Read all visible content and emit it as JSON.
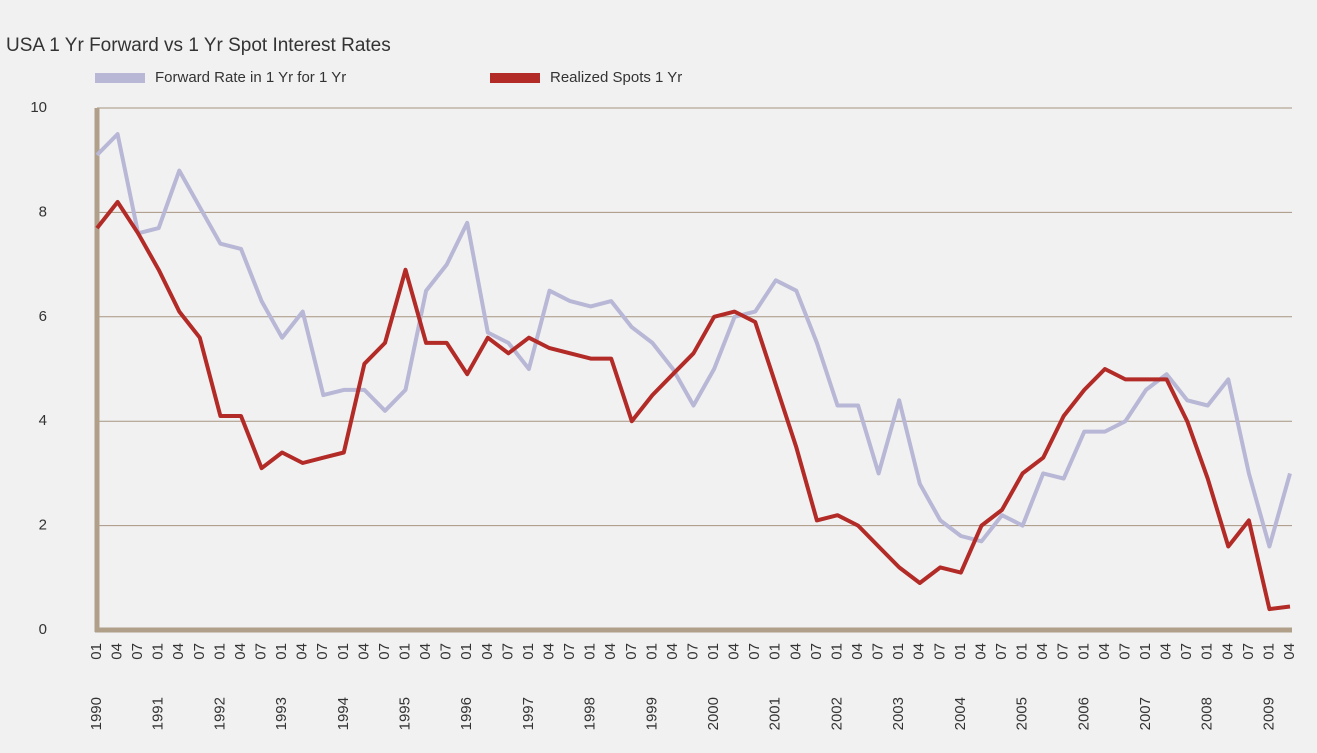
{
  "chart_data": {
    "type": "line",
    "title": "USA 1 Yr Forward vs 1 Yr Spot Interest Rates",
    "categories": [
      "01",
      "04",
      "07",
      "01",
      "04",
      "07",
      "01",
      "04",
      "07",
      "01",
      "04",
      "07",
      "01",
      "04",
      "07",
      "01",
      "04",
      "07",
      "01",
      "04",
      "07",
      "01",
      "04",
      "07",
      "01",
      "04",
      "07",
      "01",
      "04",
      "07",
      "01",
      "04",
      "07",
      "01",
      "04",
      "07",
      "01",
      "04",
      "07",
      "01",
      "04",
      "07",
      "01",
      "04",
      "07",
      "01",
      "04",
      "07",
      "01",
      "04",
      "07",
      "01",
      "04",
      "07",
      "01",
      "04",
      "07",
      "01",
      "04"
    ],
    "years": [
      "1990",
      "1991",
      "1992",
      "1993",
      "1994",
      "1995",
      "1996",
      "1997",
      "1998",
      "1999",
      "2000",
      "2001",
      "2002",
      "2003",
      "2004",
      "2005",
      "2006",
      "2007",
      "2008",
      "2009"
    ],
    "series": [
      {
        "name": "Forward Rate in 1 Yr for 1 Yr",
        "color": "#b8b7d6",
        "values": [
          9.1,
          9.5,
          7.6,
          7.7,
          8.8,
          8.1,
          7.4,
          7.3,
          6.3,
          5.6,
          6.1,
          4.5,
          4.6,
          4.6,
          4.2,
          4.6,
          6.5,
          7.0,
          7.8,
          5.7,
          5.5,
          5.0,
          6.5,
          6.3,
          6.2,
          6.3,
          5.8,
          5.5,
          5.0,
          4.3,
          5.0,
          6.0,
          6.1,
          6.7,
          6.5,
          5.5,
          4.3,
          4.3,
          3.0,
          4.4,
          2.8,
          2.1,
          1.8,
          1.7,
          2.2,
          2.0,
          3.0,
          2.9,
          3.8,
          3.8,
          4.0,
          4.6,
          4.9,
          4.4,
          4.3,
          4.8,
          3.0,
          1.6,
          3.0
        ]
      },
      {
        "name": "Realized Spots 1 Yr",
        "color": "#b22b27",
        "values": [
          7.7,
          8.2,
          7.6,
          6.9,
          6.1,
          5.6,
          4.1,
          4.1,
          3.1,
          3.4,
          3.2,
          3.3,
          3.4,
          5.1,
          5.5,
          6.9,
          5.5,
          5.5,
          4.9,
          5.6,
          5.3,
          5.6,
          5.4,
          5.3,
          5.2,
          5.2,
          4.0,
          4.5,
          4.9,
          5.3,
          6.0,
          6.1,
          5.9,
          4.7,
          3.5,
          2.1,
          2.2,
          2.0,
          1.6,
          1.2,
          0.9,
          1.2,
          1.1,
          2.0,
          2.3,
          3.0,
          3.3,
          4.1,
          4.6,
          5.0,
          4.8,
          4.8,
          4.8,
          4.0,
          2.9,
          1.6,
          2.1,
          0.4,
          0.45
        ]
      }
    ],
    "ylim": [
      0,
      10
    ],
    "yticks": [
      0,
      2,
      4,
      6,
      8,
      10
    ],
    "grid": true
  }
}
